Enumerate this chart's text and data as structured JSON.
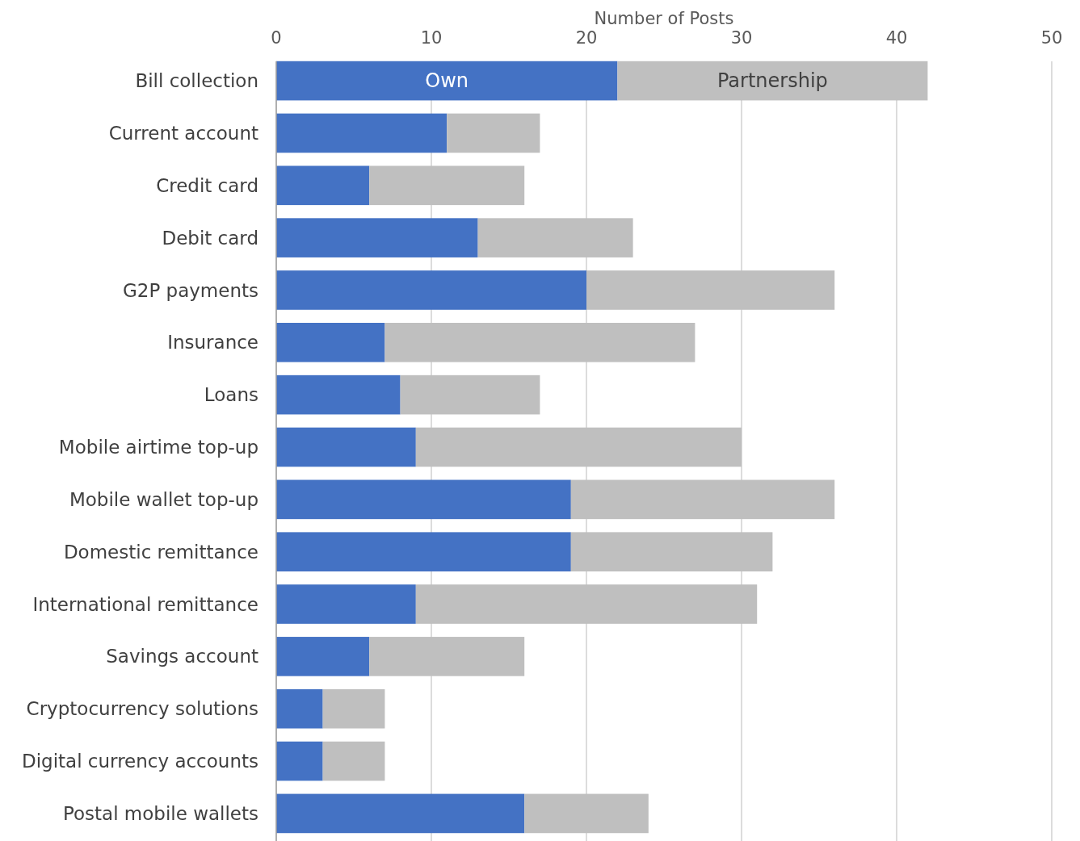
{
  "chart_data": {
    "type": "bar",
    "orientation": "horizontal",
    "stacked": true,
    "xlabel": "Number of Posts",
    "categories": [
      "Bill collection",
      "Current account",
      "Credit card",
      "Debit card",
      "G2P payments",
      "Insurance",
      "Loans",
      "Mobile airtime top-up",
      "Mobile wallet top-up",
      "Domestic remittance",
      "International remittance",
      "Savings account",
      "Cryptocurrency solutions",
      "Digital currency accounts",
      "Postal mobile wallets"
    ],
    "series": [
      {
        "name": "Own",
        "color": "#4472c4",
        "values": [
          22,
          11,
          6,
          13,
          20,
          7,
          8,
          9,
          19,
          19,
          9,
          6,
          3,
          3,
          16
        ]
      },
      {
        "name": "Partnership",
        "color": "#bfbfbf",
        "values": [
          20,
          6,
          10,
          10,
          16,
          20,
          9,
          21,
          17,
          13,
          22,
          10,
          4,
          4,
          8
        ]
      }
    ],
    "xlim": [
      0,
      50
    ],
    "xticks": [
      0,
      10,
      20,
      30,
      40,
      50
    ],
    "grid": "x",
    "legend": false
  }
}
